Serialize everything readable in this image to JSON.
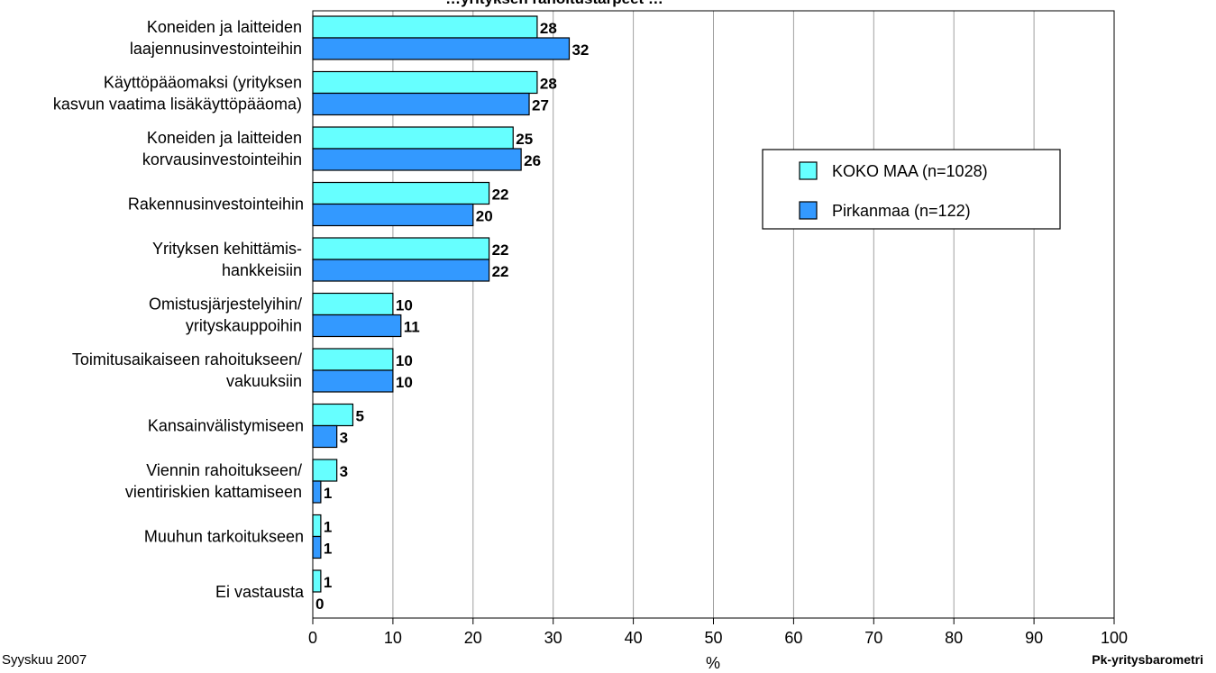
{
  "chart_data": {
    "type": "bar",
    "orientation": "horizontal",
    "title": "…yrityksen rahoitustarpeet …",
    "categories": [
      [
        "Koneiden ja laitteiden",
        "laajennusinvestointeihin"
      ],
      [
        "Käyttöpääomaksi (yrityksen",
        "kasvun vaatima lisäkäyttöpääoma)"
      ],
      [
        "Koneiden ja laitteiden",
        "korvausinvestointeihin"
      ],
      [
        "Rakennusinvestointeihin"
      ],
      [
        "Yrityksen kehittämis-",
        "hankkeisiin"
      ],
      [
        "Omistusjärjestelyihin/",
        "yrityskauppoihin"
      ],
      [
        "Toimitusaikaiseen rahoitukseen/",
        "vakuuksiin"
      ],
      [
        "Kansainvälistymiseen"
      ],
      [
        "Viennin rahoitukseen/",
        "vientiriskien kattamiseen"
      ],
      [
        "Muuhun tarkoitukseen"
      ],
      [
        "Ei vastausta"
      ]
    ],
    "series": [
      {
        "name": "KOKO MAA (n=1028)",
        "color": "#66ffff",
        "values": [
          28,
          28,
          25,
          22,
          22,
          10,
          10,
          5,
          3,
          1,
          1
        ]
      },
      {
        "name": "Pirkanmaa (n=122)",
        "color": "#3399ff",
        "values": [
          32,
          27,
          26,
          20,
          22,
          11,
          10,
          3,
          1,
          1,
          0
        ]
      }
    ],
    "xlim": [
      0,
      100
    ],
    "xticks": [
      "0",
      "10",
      "20",
      "30",
      "40",
      "50",
      "60",
      "70",
      "80",
      "90",
      "100"
    ],
    "xlabel": "%",
    "grid": true,
    "legend_position": "right"
  },
  "footer": {
    "date": "Syyskuu 2007",
    "source": "Pk-yritysbarometri"
  }
}
